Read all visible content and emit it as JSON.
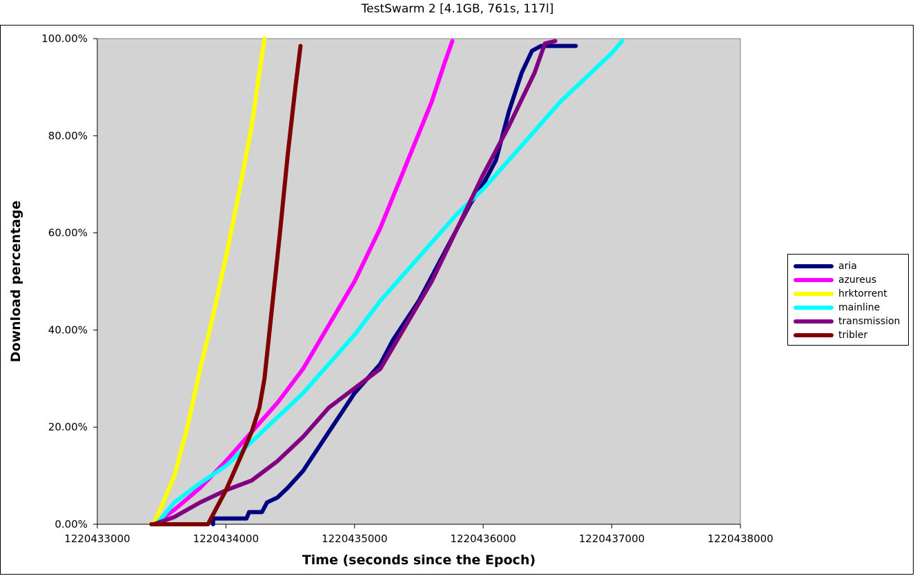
{
  "chart_data": {
    "type": "line",
    "title": "TestSwarm 2 [4.1GB, 761s, 117l]",
    "xlabel": "Time (seconds since the Epoch)",
    "ylabel": "Download percentage",
    "xlim": [
      1220433000,
      1220438000
    ],
    "ylim": [
      0,
      1
    ],
    "x_ticks": [
      1220433000,
      1220434000,
      1220435000,
      1220436000,
      1220437000,
      1220438000
    ],
    "x_tick_labels": [
      "1220433000",
      "1220434000",
      "1220435000",
      "1220436000",
      "1220437000",
      "1220438000"
    ],
    "y_ticks": [
      0,
      0.2,
      0.4,
      0.6,
      0.8,
      1.0
    ],
    "y_tick_labels": [
      "0.00%",
      "20.00%",
      "40.00%",
      "60.00%",
      "80.00%",
      "100.00%"
    ],
    "grid": false,
    "plot_background": "#d3d3d3",
    "legend_position": "right",
    "series": [
      {
        "name": "aria",
        "color": "#000080",
        "points": [
          [
            1220433900,
            0.0
          ],
          [
            1220433900,
            0.012
          ],
          [
            1220434160,
            0.012
          ],
          [
            1220434180,
            0.025
          ],
          [
            1220434280,
            0.025
          ],
          [
            1220434320,
            0.045
          ],
          [
            1220434400,
            0.055
          ],
          [
            1220434480,
            0.075
          ],
          [
            1220434600,
            0.11
          ],
          [
            1220434700,
            0.15
          ],
          [
            1220434800,
            0.19
          ],
          [
            1220434900,
            0.23
          ],
          [
            1220435000,
            0.27
          ],
          [
            1220435100,
            0.3
          ],
          [
            1220435200,
            0.33
          ],
          [
            1220435300,
            0.38
          ],
          [
            1220435400,
            0.42
          ],
          [
            1220435500,
            0.46
          ],
          [
            1220435600,
            0.51
          ],
          [
            1220435700,
            0.56
          ],
          [
            1220435800,
            0.61
          ],
          [
            1220435900,
            0.66
          ],
          [
            1220436000,
            0.7
          ],
          [
            1220436100,
            0.75
          ],
          [
            1220436200,
            0.85
          ],
          [
            1220436300,
            0.93
          ],
          [
            1220436380,
            0.975
          ],
          [
            1220436450,
            0.985
          ],
          [
            1220436720,
            0.985
          ]
        ]
      },
      {
        "name": "azureus",
        "color": "#ff00ff",
        "points": [
          [
            1220433440,
            0.0
          ],
          [
            1220433600,
            0.03
          ],
          [
            1220433800,
            0.075
          ],
          [
            1220434000,
            0.13
          ],
          [
            1220434200,
            0.19
          ],
          [
            1220434400,
            0.25
          ],
          [
            1220434600,
            0.32
          ],
          [
            1220434800,
            0.41
          ],
          [
            1220435000,
            0.5
          ],
          [
            1220435200,
            0.61
          ],
          [
            1220435400,
            0.74
          ],
          [
            1220435600,
            0.87
          ],
          [
            1220435700,
            0.95
          ],
          [
            1220435760,
            0.995
          ]
        ]
      },
      {
        "name": "hrktorrent",
        "color": "#ffff00",
        "points": [
          [
            1220433440,
            0.0
          ],
          [
            1220433520,
            0.05
          ],
          [
            1220433600,
            0.1
          ],
          [
            1220433700,
            0.2
          ],
          [
            1220433800,
            0.32
          ],
          [
            1220433900,
            0.43
          ],
          [
            1220434000,
            0.55
          ],
          [
            1220434100,
            0.68
          ],
          [
            1220434200,
            0.82
          ],
          [
            1220434260,
            0.93
          ],
          [
            1220434300,
            1.0
          ]
        ]
      },
      {
        "name": "mainline",
        "color": "#00ffff",
        "points": [
          [
            1220433460,
            0.0
          ],
          [
            1220433600,
            0.045
          ],
          [
            1220433800,
            0.085
          ],
          [
            1220434000,
            0.12
          ],
          [
            1220434200,
            0.17
          ],
          [
            1220434400,
            0.22
          ],
          [
            1220434600,
            0.27
          ],
          [
            1220434800,
            0.33
          ],
          [
            1220435000,
            0.39
          ],
          [
            1220435200,
            0.46
          ],
          [
            1220435400,
            0.52
          ],
          [
            1220435600,
            0.58
          ],
          [
            1220435800,
            0.64
          ],
          [
            1220436000,
            0.69
          ],
          [
            1220436200,
            0.75
          ],
          [
            1220436400,
            0.81
          ],
          [
            1220436600,
            0.87
          ],
          [
            1220436800,
            0.92
          ],
          [
            1220437000,
            0.97
          ],
          [
            1220437080,
            0.995
          ]
        ]
      },
      {
        "name": "transmission",
        "color": "#800080",
        "points": [
          [
            1220433440,
            0.0
          ],
          [
            1220433600,
            0.015
          ],
          [
            1220433800,
            0.045
          ],
          [
            1220434000,
            0.07
          ],
          [
            1220434200,
            0.09
          ],
          [
            1220434400,
            0.13
          ],
          [
            1220434600,
            0.18
          ],
          [
            1220434800,
            0.24
          ],
          [
            1220435000,
            0.28
          ],
          [
            1220435200,
            0.32
          ],
          [
            1220435400,
            0.41
          ],
          [
            1220435600,
            0.5
          ],
          [
            1220435800,
            0.61
          ],
          [
            1220436000,
            0.72
          ],
          [
            1220436200,
            0.82
          ],
          [
            1220436400,
            0.93
          ],
          [
            1220436480,
            0.99
          ],
          [
            1220436560,
            0.995
          ]
        ]
      },
      {
        "name": "tribler",
        "color": "#800000",
        "points": [
          [
            1220433420,
            0.0
          ],
          [
            1220433860,
            0.0
          ],
          [
            1220434000,
            0.07
          ],
          [
            1220434100,
            0.13
          ],
          [
            1220434200,
            0.19
          ],
          [
            1220434260,
            0.24
          ],
          [
            1220434300,
            0.3
          ],
          [
            1220434360,
            0.45
          ],
          [
            1220434420,
            0.6
          ],
          [
            1220434480,
            0.76
          ],
          [
            1220434540,
            0.9
          ],
          [
            1220434580,
            0.985
          ]
        ]
      }
    ]
  }
}
